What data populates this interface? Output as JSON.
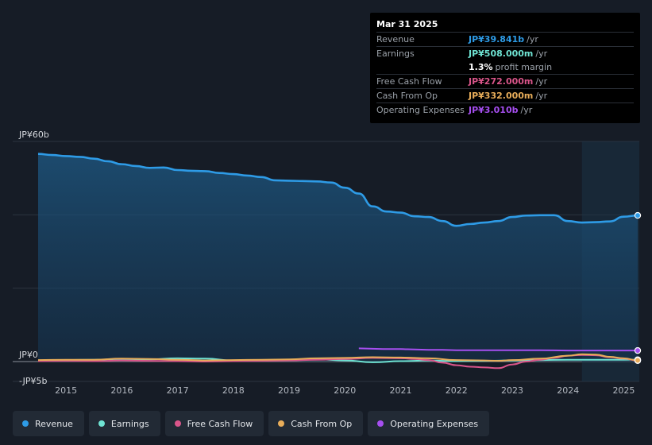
{
  "tooltip": {
    "date": "Mar 31 2025",
    "rows": [
      {
        "label": "Revenue",
        "value": "JP¥39.841b",
        "unit": "/yr",
        "color": "#2e9be6"
      },
      {
        "label": "Earnings",
        "value": "JP¥508.000m",
        "unit": "/yr",
        "color": "#6fe3d3"
      },
      {
        "label": "",
        "value": "1.3%",
        "unit": "profit margin",
        "color": "#ffffff"
      },
      {
        "label": "Free Cash Flow",
        "value": "JP¥272.000m",
        "unit": "/yr",
        "color": "#d9558a"
      },
      {
        "label": "Cash From Op",
        "value": "JP¥332.000m",
        "unit": "/yr",
        "color": "#e8ad5a"
      },
      {
        "label": "Operating Expenses",
        "value": "JP¥3.010b",
        "unit": "/yr",
        "color": "#a64ff0"
      }
    ]
  },
  "legend": [
    {
      "label": "Revenue",
      "color": "#2e9be6"
    },
    {
      "label": "Earnings",
      "color": "#6fe3d3"
    },
    {
      "label": "Free Cash Flow",
      "color": "#d9558a"
    },
    {
      "label": "Cash From Op",
      "color": "#e8ad5a"
    },
    {
      "label": "Operating Expenses",
      "color": "#a64ff0"
    }
  ],
  "chart_data": {
    "type": "line",
    "ylim": [
      -5,
      60
    ],
    "y_tick_labels": [
      {
        "value": 60,
        "label": "JP¥60b"
      },
      {
        "value": 0,
        "label": "JP¥0"
      },
      {
        "value": -5,
        "label": "-JP¥5b"
      }
    ],
    "x_tick_labels": [
      "2015",
      "2016",
      "2017",
      "2018",
      "2019",
      "2020",
      "2021",
      "2022",
      "2023",
      "2024",
      "2025"
    ],
    "xlim": [
      2014.5,
      2025.25
    ],
    "x_tick_values": [
      2015,
      2016,
      2017,
      2018,
      2019,
      2020,
      2021,
      2022,
      2023,
      2024,
      2025
    ],
    "highlight_start": 2024.25,
    "grid": true,
    "series": [
      {
        "name": "Revenue",
        "color": "#2e9be6",
        "area": true,
        "points": [
          [
            2014.5,
            56.6
          ],
          [
            2014.75,
            56.3
          ],
          [
            2015.0,
            56.0
          ],
          [
            2015.25,
            55.8
          ],
          [
            2015.5,
            55.3
          ],
          [
            2015.75,
            54.6
          ],
          [
            2016.0,
            53.8
          ],
          [
            2016.25,
            53.3
          ],
          [
            2016.5,
            52.8
          ],
          [
            2016.75,
            52.9
          ],
          [
            2017.0,
            52.2
          ],
          [
            2017.25,
            52.0
          ],
          [
            2017.5,
            51.9
          ],
          [
            2017.75,
            51.4
          ],
          [
            2018.0,
            51.1
          ],
          [
            2018.25,
            50.7
          ],
          [
            2018.5,
            50.3
          ],
          [
            2018.75,
            49.4
          ],
          [
            2019.0,
            49.3
          ],
          [
            2019.25,
            49.2
          ],
          [
            2019.5,
            49.1
          ],
          [
            2019.75,
            48.8
          ],
          [
            2020.0,
            47.4
          ],
          [
            2020.25,
            45.8
          ],
          [
            2020.5,
            42.3
          ],
          [
            2020.75,
            40.9
          ],
          [
            2021.0,
            40.6
          ],
          [
            2021.25,
            39.6
          ],
          [
            2021.5,
            39.4
          ],
          [
            2021.75,
            38.3
          ],
          [
            2022.0,
            37.0
          ],
          [
            2022.25,
            37.5
          ],
          [
            2022.5,
            37.9
          ],
          [
            2022.75,
            38.3
          ],
          [
            2023.0,
            39.4
          ],
          [
            2023.25,
            39.8
          ],
          [
            2023.5,
            39.9
          ],
          [
            2023.75,
            39.9
          ],
          [
            2024.0,
            38.3
          ],
          [
            2024.25,
            37.9
          ],
          [
            2024.5,
            38.0
          ],
          [
            2024.75,
            38.2
          ],
          [
            2025.0,
            39.5
          ],
          [
            2025.25,
            39.841
          ]
        ]
      },
      {
        "name": "Earnings",
        "color": "#6fe3d3",
        "points": [
          [
            2014.5,
            0.3
          ],
          [
            2015.0,
            0.4
          ],
          [
            2015.5,
            0.5
          ],
          [
            2016.0,
            0.7
          ],
          [
            2016.5,
            0.6
          ],
          [
            2017.0,
            0.9
          ],
          [
            2017.5,
            0.8
          ],
          [
            2018.0,
            0.3
          ],
          [
            2018.5,
            0.4
          ],
          [
            2019.0,
            0.5
          ],
          [
            2019.5,
            0.6
          ],
          [
            2020.0,
            0.3
          ],
          [
            2020.5,
            -0.2
          ],
          [
            2021.0,
            0.1
          ],
          [
            2021.5,
            0.3
          ],
          [
            2022.0,
            0.1
          ],
          [
            2022.5,
            0.2
          ],
          [
            2023.0,
            0.3
          ],
          [
            2023.5,
            0.4
          ],
          [
            2024.0,
            0.5
          ],
          [
            2024.5,
            0.5
          ],
          [
            2025.0,
            0.5
          ],
          [
            2025.25,
            0.508
          ]
        ]
      },
      {
        "name": "Free Cash Flow",
        "color": "#d9558a",
        "points": [
          [
            2014.5,
            0.1
          ],
          [
            2015.0,
            0.2
          ],
          [
            2015.5,
            0.1
          ],
          [
            2016.0,
            0.3
          ],
          [
            2016.5,
            0.2
          ],
          [
            2017.0,
            0.1
          ],
          [
            2017.5,
            0.0
          ],
          [
            2018.0,
            0.1
          ],
          [
            2018.5,
            0.2
          ],
          [
            2019.0,
            0.3
          ],
          [
            2019.5,
            0.5
          ],
          [
            2020.0,
            0.7
          ],
          [
            2020.5,
            1.0
          ],
          [
            2021.0,
            0.9
          ],
          [
            2021.25,
            0.7
          ],
          [
            2021.5,
            0.4
          ],
          [
            2021.75,
            -0.3
          ],
          [
            2022.0,
            -1.0
          ],
          [
            2022.25,
            -1.4
          ],
          [
            2022.5,
            -1.6
          ],
          [
            2022.75,
            -1.8
          ],
          [
            2023.0,
            -0.8
          ],
          [
            2023.25,
            0.0
          ],
          [
            2023.5,
            0.5
          ],
          [
            2023.75,
            1.0
          ],
          [
            2024.0,
            1.6
          ],
          [
            2024.25,
            1.8
          ],
          [
            2024.5,
            1.7
          ],
          [
            2024.75,
            1.2
          ],
          [
            2025.0,
            0.8
          ],
          [
            2025.25,
            0.272
          ]
        ]
      },
      {
        "name": "Cash From Op",
        "color": "#e8ad5a",
        "points": [
          [
            2014.5,
            0.4
          ],
          [
            2015.0,
            0.5
          ],
          [
            2015.5,
            0.5
          ],
          [
            2016.0,
            0.8
          ],
          [
            2016.5,
            0.7
          ],
          [
            2017.0,
            0.5
          ],
          [
            2017.5,
            0.3
          ],
          [
            2018.0,
            0.4
          ],
          [
            2018.5,
            0.5
          ],
          [
            2019.0,
            0.6
          ],
          [
            2019.5,
            0.9
          ],
          [
            2020.0,
            1.0
          ],
          [
            2020.5,
            1.2
          ],
          [
            2021.0,
            1.1
          ],
          [
            2021.5,
            0.9
          ],
          [
            2022.0,
            0.4
          ],
          [
            2022.5,
            0.3
          ],
          [
            2022.75,
            0.2
          ],
          [
            2023.0,
            0.4
          ],
          [
            2023.5,
            0.8
          ],
          [
            2024.0,
            1.6
          ],
          [
            2024.25,
            2.0
          ],
          [
            2024.5,
            1.9
          ],
          [
            2024.75,
            1.3
          ],
          [
            2025.0,
            0.9
          ],
          [
            2025.25,
            0.332
          ]
        ]
      },
      {
        "name": "Operating Expenses",
        "color": "#a64ff0",
        "points": [
          [
            2020.25,
            3.6
          ],
          [
            2020.5,
            3.5
          ],
          [
            2020.75,
            3.4
          ],
          [
            2021.0,
            3.4
          ],
          [
            2021.25,
            3.3
          ],
          [
            2021.5,
            3.2
          ],
          [
            2021.75,
            3.2
          ],
          [
            2022.0,
            3.1
          ],
          [
            2022.5,
            3.1
          ],
          [
            2023.0,
            3.1
          ],
          [
            2023.5,
            3.1
          ],
          [
            2024.0,
            3.0
          ],
          [
            2024.5,
            3.0
          ],
          [
            2025.0,
            3.0
          ],
          [
            2025.25,
            3.01
          ]
        ]
      }
    ]
  }
}
